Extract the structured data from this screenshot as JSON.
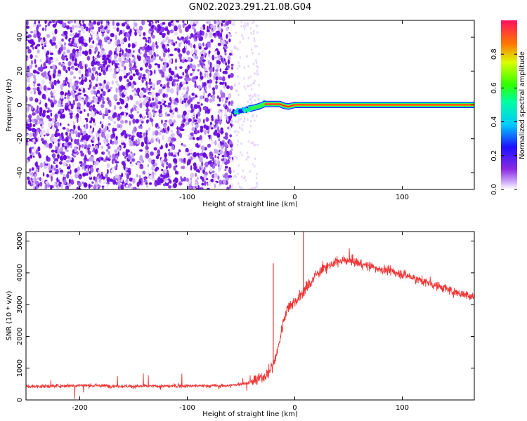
{
  "title": "GN02.2023.291.21.08.G04",
  "chart_data": [
    {
      "type": "heatmap",
      "xlabel": "Height of straight line (km)",
      "ylabel": "Frequency (Hz)",
      "xlim": [
        -250,
        167
      ],
      "ylim": [
        -50,
        50
      ],
      "xticks": [
        -200,
        -100,
        0,
        100
      ],
      "yticks": [
        -40,
        -20,
        0,
        20,
        40
      ],
      "noise_region_km": [
        -250,
        -58
      ],
      "transition_region_km": [
        -58,
        -28
      ],
      "line_track": [
        {
          "x": -58,
          "y": -5.0
        },
        {
          "x": -52,
          "y": -4.0
        },
        {
          "x": -46,
          "y": -3.0
        },
        {
          "x": -40,
          "y": -2.0
        },
        {
          "x": -34,
          "y": -1.0
        },
        {
          "x": -28,
          "y": 0.5
        },
        {
          "x": -22,
          "y": 0.5
        },
        {
          "x": -14,
          "y": 0.5
        },
        {
          "x": -10,
          "y": -0.5
        },
        {
          "x": -6,
          "y": -1.0
        },
        {
          "x": 0,
          "y": 0.0
        },
        {
          "x": 167,
          "y": 0.0
        }
      ],
      "colorbar": {
        "label": "Normalized spectral amplitude",
        "ticks": [
          "0.0",
          "0.2",
          "0.4",
          "0.6",
          "0.8"
        ],
        "range": [
          0,
          1
        ]
      }
    },
    {
      "type": "line",
      "xlabel": "Height of straight line (km)",
      "ylabel": "SNR (10 * v/v)",
      "xlim": [
        -250,
        167
      ],
      "ylim": [
        0,
        5300
      ],
      "xticks": [
        -200,
        -100,
        0,
        100
      ],
      "yticks": [
        0,
        1000,
        2000,
        3000,
        4000,
        5000
      ],
      "color": "#f03434",
      "x": [
        -250,
        -200,
        -150,
        -100,
        -60,
        -40,
        -30,
        -25,
        -20,
        -15,
        -10,
        -5,
        0,
        5,
        10,
        15,
        20,
        30,
        40,
        50,
        60,
        70,
        80,
        90,
        100,
        110,
        120,
        130,
        140,
        150,
        167
      ],
      "y": [
        420,
        460,
        430,
        440,
        450,
        560,
        700,
        850,
        1100,
        1700,
        2600,
        3000,
        3100,
        3250,
        3500,
        3700,
        3950,
        4200,
        4350,
        4400,
        4300,
        4200,
        4120,
        4050,
        3960,
        3850,
        3730,
        3620,
        3500,
        3380,
        3250
      ],
      "spikes": [
        {
          "x": -20,
          "y": 4300
        },
        {
          "x": 8,
          "y": 5300
        }
      ]
    }
  ]
}
